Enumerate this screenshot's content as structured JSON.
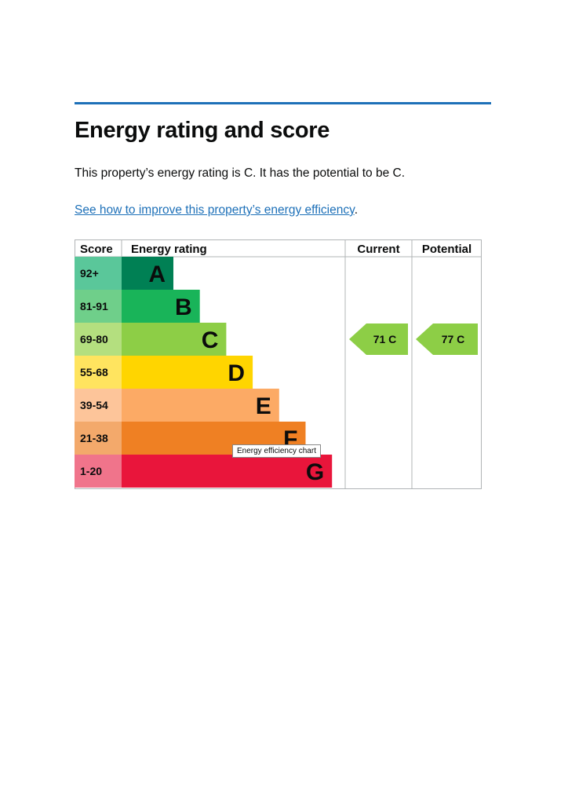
{
  "heading": "Energy rating and score",
  "summary": "This property’s energy rating is C. It has the potential to be C.",
  "link": {
    "text": "See how to improve this property’s energy efficiency",
    "suffix": "."
  },
  "chart_data": {
    "type": "bar",
    "headers": {
      "score": "Score",
      "rating": "Energy rating",
      "current": "Current",
      "potential": "Potential"
    },
    "bands": [
      {
        "score": "92+",
        "letter": "A",
        "color": "#008054",
        "score_color": "#5ac79a"
      },
      {
        "score": "81-91",
        "letter": "B",
        "color": "#19b459",
        "score_color": "#6fcf8a"
      },
      {
        "score": "69-80",
        "letter": "C",
        "color": "#8dce46",
        "score_color": "#b4df7f"
      },
      {
        "score": "55-68",
        "letter": "D",
        "color": "#ffd500",
        "score_color": "#ffe45f"
      },
      {
        "score": "39-54",
        "letter": "E",
        "color": "#fcaa65",
        "score_color": "#fdc59a"
      },
      {
        "score": "21-38",
        "letter": "F",
        "color": "#ef8023",
        "score_color": "#f3a96b"
      },
      {
        "score": "1-20",
        "letter": "G",
        "color": "#e9153b",
        "score_color": "#f0748b"
      }
    ],
    "current": {
      "score": 71,
      "letter": "C",
      "label": "71  C"
    },
    "potential": {
      "score": 77,
      "letter": "C",
      "label": "77  C"
    },
    "tooltip": "Energy efficiency chart"
  }
}
